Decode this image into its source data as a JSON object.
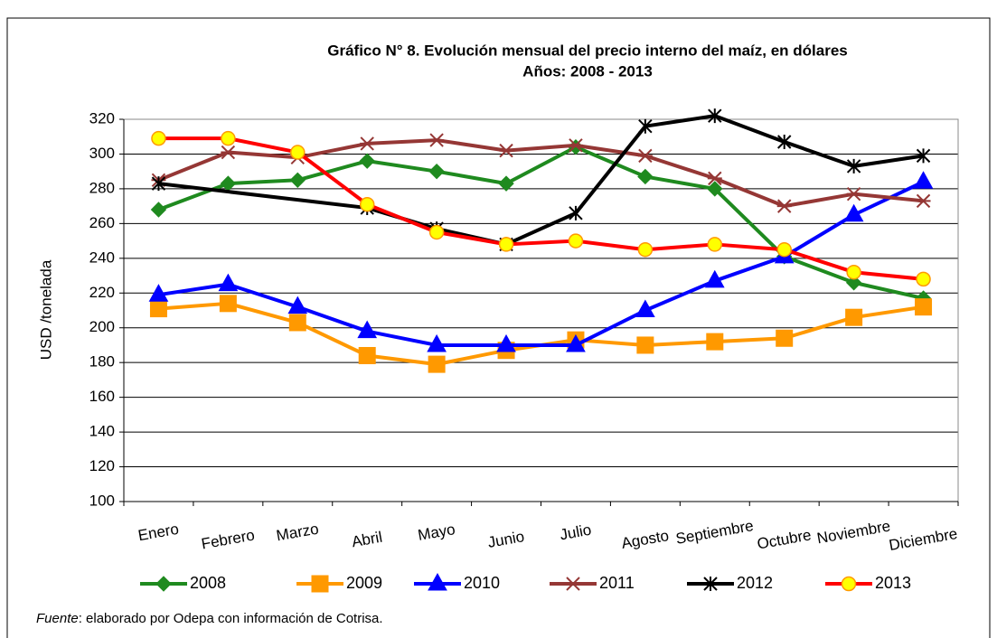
{
  "chart_data": {
    "type": "line",
    "title": "Gráfico N° 8. Evolución mensual del precio interno del maíz,  en dólares",
    "subtitle": "Años: 2008 - 2013",
    "y_label": "USD /tonelada",
    "source_label": "Fuente",
    "source_text": ": elaborado por Odepa con información de Cotrisa.",
    "categories": [
      "Enero",
      "Febrero",
      "Marzo",
      "Abril",
      "Mayo",
      "Junio",
      "Julio",
      "Agosto",
      "Septiembre",
      "Octubre",
      "Noviembre",
      "Diciembre"
    ],
    "ylim": [
      100,
      320
    ],
    "yticks": [
      100,
      120,
      140,
      160,
      180,
      200,
      220,
      240,
      260,
      280,
      300,
      320
    ],
    "grid": true,
    "connect_gaps": true,
    "legend": "bottom",
    "series": [
      {
        "name": "2008",
        "color": "#1f8a1f",
        "marker": "diamond",
        "marker_fill": "#1f8a1f",
        "values": [
          268,
          283,
          285,
          296,
          290,
          283,
          304,
          287,
          280,
          241,
          226,
          217
        ]
      },
      {
        "name": "2009",
        "color": "#ff9900",
        "marker": "square",
        "marker_fill": "#ff9900",
        "values": [
          211,
          214,
          203,
          184,
          179,
          187,
          193,
          190,
          192,
          194,
          206,
          212
        ]
      },
      {
        "name": "2010",
        "color": "#0000ff",
        "marker": "triangle",
        "marker_fill": "#0000ff",
        "values": [
          219,
          225,
          212,
          198,
          190,
          190,
          190,
          210,
          227,
          241,
          265,
          284
        ]
      },
      {
        "name": "2011",
        "color": "#953735",
        "marker": "star",
        "marker_fill": "#953735",
        "values": [
          285,
          301,
          298,
          306,
          308,
          302,
          305,
          299,
          286,
          270,
          277,
          273
        ]
      },
      {
        "name": "2012",
        "color": "#000000",
        "marker": "xstar",
        "marker_fill": "#000000",
        "values": [
          283,
          null,
          null,
          269,
          257,
          248,
          266,
          316,
          322,
          307,
          293,
          299
        ]
      },
      {
        "name": "2013",
        "color": "#ff0000",
        "marker": "circle",
        "marker_fill": "#ffff00",
        "values": [
          309,
          309,
          301,
          271,
          255,
          248,
          250,
          245,
          248,
          245,
          232,
          228
        ]
      }
    ]
  }
}
